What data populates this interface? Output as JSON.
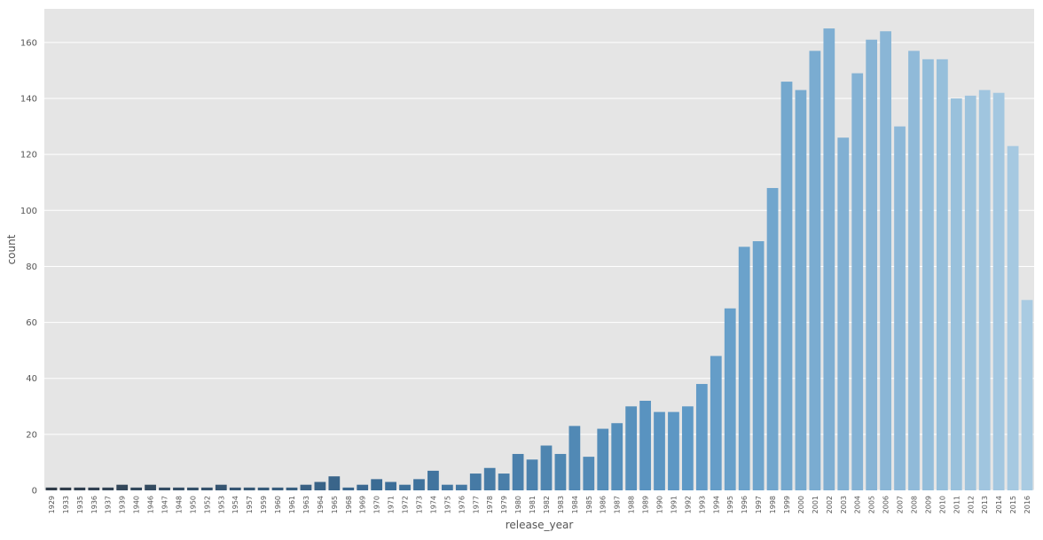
{
  "chart_data": {
    "type": "bar",
    "title": "",
    "xlabel": "release_year",
    "ylabel": "count",
    "ylim": [
      0,
      172
    ],
    "yticks": [
      0,
      20,
      40,
      60,
      80,
      100,
      120,
      140,
      160
    ],
    "grid": true,
    "legend": "none",
    "colors": {
      "background": "#e5e5e5",
      "grid": "#ffffff",
      "tick_text": "#555555",
      "label_text": "#555555",
      "palette": "Blues_d (dark slate blue to light blue)"
    },
    "categories": [
      "1929",
      "1933",
      "1935",
      "1936",
      "1937",
      "1939",
      "1940",
      "1946",
      "1947",
      "1948",
      "1950",
      "1952",
      "1953",
      "1954",
      "1957",
      "1959",
      "1960",
      "1961",
      "1963",
      "1964",
      "1965",
      "1968",
      "1969",
      "1970",
      "1971",
      "1972",
      "1973",
      "1974",
      "1975",
      "1976",
      "1977",
      "1978",
      "1979",
      "1980",
      "1981",
      "1982",
      "1983",
      "1984",
      "1985",
      "1986",
      "1987",
      "1988",
      "1989",
      "1990",
      "1991",
      "1992",
      "1993",
      "1994",
      "1995",
      "1996",
      "1997",
      "1998",
      "1999",
      "2000",
      "2001",
      "2002",
      "2003",
      "2004",
      "2005",
      "2006",
      "2007",
      "2008",
      "2009",
      "2010",
      "2011",
      "2012",
      "2013",
      "2014",
      "2015",
      "2016"
    ],
    "values": [
      1,
      1,
      1,
      1,
      1,
      2,
      1,
      2,
      1,
      1,
      1,
      1,
      2,
      1,
      1,
      1,
      1,
      1,
      2,
      3,
      5,
      1,
      2,
      4,
      3,
      2,
      4,
      7,
      2,
      2,
      6,
      8,
      6,
      13,
      11,
      16,
      13,
      23,
      12,
      22,
      24,
      30,
      32,
      28,
      28,
      30,
      38,
      48,
      65,
      87,
      89,
      108,
      146,
      143,
      157,
      165,
      126,
      149,
      161,
      164,
      130,
      157,
      154,
      154,
      140,
      141,
      143,
      142,
      123,
      68
    ]
  }
}
